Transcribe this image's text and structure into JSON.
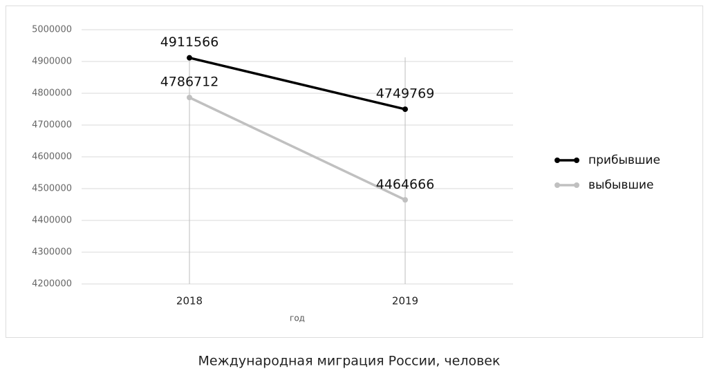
{
  "chart_data": {
    "type": "line",
    "caption": "Международная миграция России, человек",
    "xlabel": "год",
    "categories": [
      "2018",
      "2019"
    ],
    "series": [
      {
        "name": "прибывшие",
        "color": "#000000",
        "values": [
          4911566,
          4749769
        ]
      },
      {
        "name": "выбывшие",
        "color": "#c0c0c0",
        "values": [
          4786712,
          4464666
        ]
      }
    ],
    "ylim": [
      4200000,
      5000000
    ],
    "yticks": [
      4200000,
      4300000,
      4400000,
      4500000,
      4600000,
      4700000,
      4800000,
      4900000,
      5000000
    ],
    "grid": true,
    "legend": "right"
  }
}
